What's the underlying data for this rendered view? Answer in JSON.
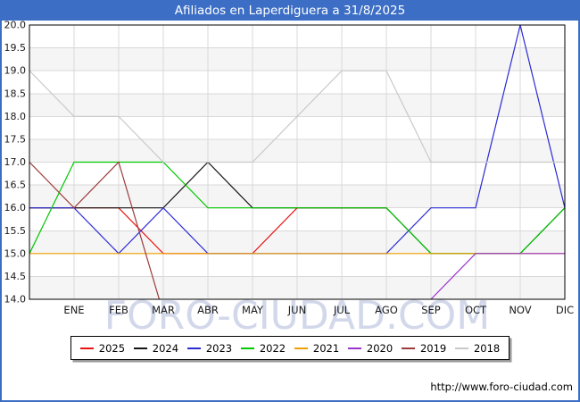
{
  "header": {
    "title": "Afiliados en Laperdiguera a 31/8/2025"
  },
  "footer": {
    "url": "http://www.foro-ciudad.com"
  },
  "watermark": {
    "text": "FORO-CIUDAD.COM"
  },
  "colors": {
    "frame": "#3c6ec5",
    "title_bg": "#3c6ec5",
    "title_text": "#ffffff",
    "grid": "#d9d9d9",
    "band": "#f5f5f5",
    "plot_border": "#000000",
    "axis_text": "#1a1a1a",
    "watermark": "#c7cfe6"
  },
  "chart_data": {
    "type": "line",
    "title": "Afiliados en Laperdiguera a 31/8/2025",
    "xlabel": "",
    "ylabel": "",
    "categories": [
      "ENE",
      "FEB",
      "MAR",
      "ABR",
      "MAY",
      "JUN",
      "JUL",
      "AGO",
      "SEP",
      "OCT",
      "NOV",
      "DIC"
    ],
    "ylim": [
      14.0,
      20.0
    ],
    "ytick_step": 0.5,
    "ytick_labels": [
      "20.0",
      "19.5",
      "19.0",
      "18.5",
      "18.0",
      "17.5",
      "17.0",
      "16.5",
      "16.0",
      "15.5",
      "15.0",
      "14.5",
      "14.0"
    ],
    "grid": true,
    "legend_position": "bottom",
    "left_edge_note": "Each line begins at the left axis with the previous December value; values below 14.0 are clipped by the axis.",
    "series": [
      {
        "name": "2025",
        "color": "#e81313",
        "prev_dec": 16,
        "values": [
          16,
          16,
          15,
          15,
          15,
          16,
          16,
          16,
          null,
          null,
          null,
          null
        ]
      },
      {
        "name": "2024",
        "color": "#141414",
        "prev_dec": 16,
        "values": [
          16,
          16,
          16,
          17,
          16,
          16,
          16,
          16,
          15,
          15,
          15,
          16
        ]
      },
      {
        "name": "2023",
        "color": "#2b2bd5",
        "prev_dec": 16,
        "values": [
          16,
          15,
          16,
          15,
          15,
          15,
          15,
          15,
          16,
          16,
          20,
          16
        ]
      },
      {
        "name": "2022",
        "color": "#00c800",
        "prev_dec": 15,
        "values": [
          17,
          17,
          17,
          16,
          16,
          16,
          16,
          16,
          15,
          15,
          15,
          16
        ]
      },
      {
        "name": "2021",
        "color": "#f0a000",
        "prev_dec": 15,
        "values": [
          15,
          15,
          15,
          15,
          15,
          15,
          15,
          15,
          15,
          15,
          15,
          15
        ]
      },
      {
        "name": "2020",
        "color": "#9933cc",
        "prev_dec": null,
        "values": [
          null,
          null,
          null,
          null,
          null,
          null,
          null,
          null,
          14,
          15,
          15,
          15
        ]
      },
      {
        "name": "2019",
        "color": "#9e3a3a",
        "prev_dec": 17,
        "values": [
          16,
          17,
          13.7,
          null,
          null,
          null,
          null,
          null,
          null,
          null,
          null,
          null
        ]
      },
      {
        "name": "2018",
        "color": "#c9c9c9",
        "prev_dec": 19,
        "values": [
          18,
          18,
          17,
          17,
          17,
          18,
          19,
          19,
          17,
          17,
          17,
          17
        ]
      }
    ]
  }
}
